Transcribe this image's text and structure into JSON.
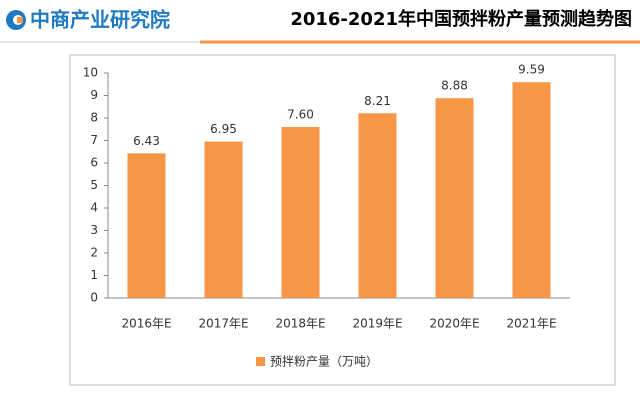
{
  "header": {
    "logo": "中商产业研究院"
  },
  "chart_data": {
    "type": "bar",
    "title": "2016-2021年中国预拌粉产量预测趋势图",
    "categories": [
      "2016年E",
      "2017年E",
      "2018年E",
      "2019年E",
      "2020年E",
      "2021年E"
    ],
    "series": [
      {
        "name": "预拌粉产量（万吨）",
        "color": "#f79646",
        "values": [
          6.43,
          6.95,
          7.6,
          8.21,
          8.88,
          9.59
        ],
        "value_labels": [
          "6.43",
          "6.95",
          "7.60",
          "8.21",
          "8.88",
          "9.59"
        ]
      }
    ],
    "ylim": [
      0,
      10
    ],
    "yticks": [
      0,
      1,
      2,
      3,
      4,
      5,
      6,
      7,
      8,
      9,
      10
    ],
    "grid": false,
    "legend": "bottom"
  }
}
